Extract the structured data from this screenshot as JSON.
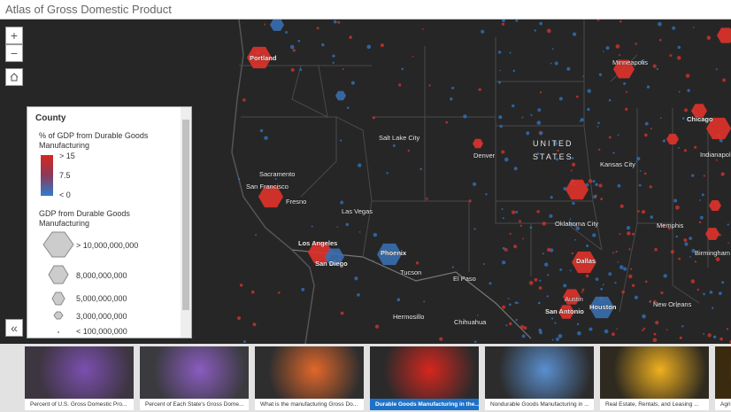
{
  "header": {
    "title": "Atlas of Gross Domestic Product"
  },
  "controls": {
    "zoom_in": "+",
    "zoom_out": "−",
    "collapse": "«"
  },
  "map": {
    "labels": [
      "Portland",
      "Salt Lake City",
      "Sacramento",
      "San Francisco",
      "Fresno",
      "Las Vegas",
      "Los Angeles",
      "San Diego",
      "Phoenix",
      "Tucson",
      "El Paso",
      "Hermosillo",
      "Chihuahua",
      "Denver",
      "UNITED",
      "STATES",
      "Kansas City",
      "Oklahoma City",
      "Dallas",
      "Austin",
      "San Antonio",
      "Houston",
      "New Orleans",
      "Memphis",
      "Birmingham",
      "Chicago",
      "Indianapolis",
      "Minneapolis"
    ]
  },
  "legend": {
    "title": "County",
    "color_field": "% of GDP from Durable Goods Manufacturing",
    "color_labels": [
      "> 15",
      "7.5",
      "< 0"
    ],
    "size_field": "GDP from Durable Goods Manufacturing",
    "size_labels": [
      "> 10,000,000,000",
      "8,000,000,000",
      "5,000,000,000",
      "3,000,000,000",
      "< 100,000,000"
    ]
  },
  "tabs": {
    "captions": [
      "Percent of U.S. Gross Domestic Pro...",
      "Percent of Each State's Gross Dome...",
      "What is the manufacturing Gross Do...",
      "Durable Goods Manufacturing in the...",
      "Nondurable Goods Manufacturing in ...",
      "Real Estate, Rentals, and Leasing ...",
      "Agri..."
    ]
  }
}
